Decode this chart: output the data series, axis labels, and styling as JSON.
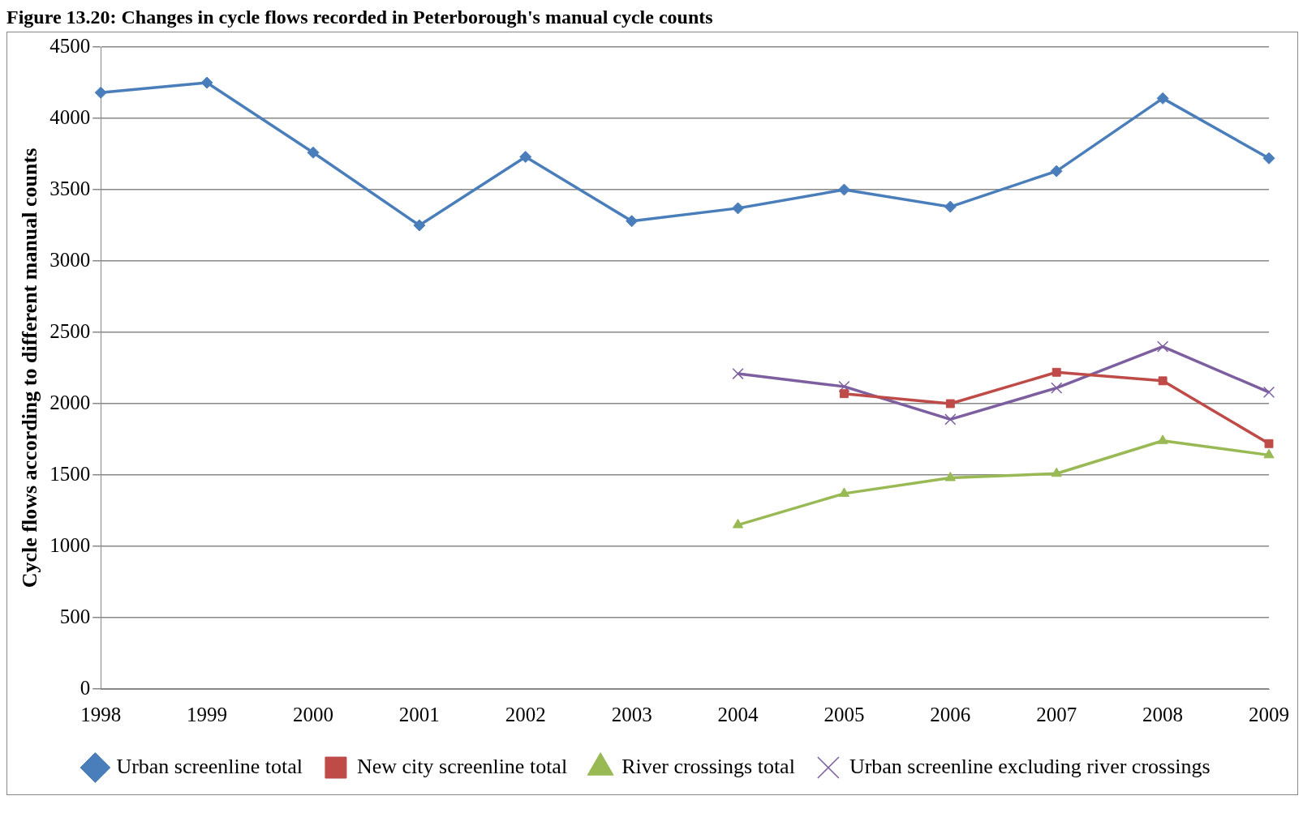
{
  "chart_data": {
    "type": "line",
    "title": "Figure 13.20: Changes in cycle flows recorded in Peterborough's manual cycle counts",
    "ylabel": "Cycle flows according to different manual counts",
    "categories": [
      "1998",
      "1999",
      "2000",
      "2001",
      "2002",
      "2003",
      "2004",
      "2005",
      "2006",
      "2007",
      "2008",
      "2009"
    ],
    "series": [
      {
        "name": "Urban screenline total",
        "color": "#4a7ebb",
        "marker": "diamond",
        "values": [
          4180,
          4250,
          3760,
          3250,
          3730,
          3280,
          3370,
          3500,
          3380,
          3630,
          4140,
          3720
        ]
      },
      {
        "name": "New city screenline total",
        "color": "#be4b48",
        "marker": "square",
        "values": [
          null,
          null,
          null,
          null,
          null,
          null,
          null,
          2070,
          2000,
          2220,
          2160,
          1720
        ]
      },
      {
        "name": "River crossings total",
        "color": "#98b954",
        "marker": "triangle",
        "values": [
          null,
          null,
          null,
          null,
          null,
          null,
          1150,
          1370,
          1480,
          1510,
          1740,
          1640
        ]
      },
      {
        "name": "Urban screenline excluding river crossings",
        "color": "#7d5fa0",
        "marker": "cross",
        "values": [
          null,
          null,
          null,
          null,
          null,
          null,
          2210,
          2120,
          1890,
          2110,
          2400,
          2080
        ]
      }
    ],
    "ylim": [
      0,
      4500
    ],
    "yticks": [
      0,
      500,
      1000,
      1500,
      2000,
      2500,
      3000,
      3500,
      4000,
      4500
    ],
    "grid": "y",
    "legend": "bottom",
    "line_style": "solid"
  }
}
